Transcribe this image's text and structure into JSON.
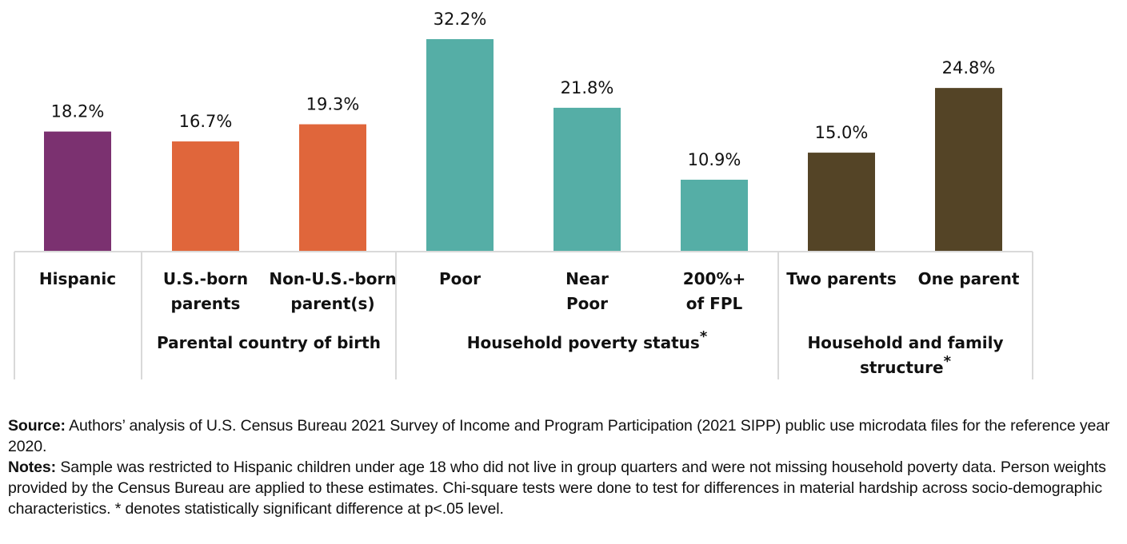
{
  "chart_data": {
    "type": "bar",
    "title": "",
    "xlabel": "",
    "ylabel": "",
    "ylim": [
      0,
      32.2
    ],
    "grid": false,
    "value_suffix": "%",
    "categories": [
      {
        "label": [
          "Hispanic"
        ],
        "value": 18.2,
        "group": 0,
        "color": "#7b3170"
      },
      {
        "label": [
          "U.S.-born",
          "parents"
        ],
        "value": 16.7,
        "group": 1,
        "color": "#e0663b"
      },
      {
        "label": [
          "Non-U.S.-born",
          "parent(s)"
        ],
        "value": 19.3,
        "group": 1,
        "color": "#e0663b"
      },
      {
        "label": [
          "Poor"
        ],
        "value": 32.2,
        "group": 2,
        "color": "#55aea6"
      },
      {
        "label": [
          "Near",
          "Poor"
        ],
        "value": 21.8,
        "group": 2,
        "color": "#55aea6"
      },
      {
        "label": [
          "200%+",
          "of FPL"
        ],
        "value": 10.9,
        "group": 2,
        "color": "#55aea6"
      },
      {
        "label": [
          "Two parents"
        ],
        "value": 15.0,
        "group": 3,
        "color": "#544426"
      },
      {
        "label": [
          "One parent"
        ],
        "value": 24.8,
        "group": 3,
        "color": "#544426"
      }
    ],
    "value_labels": [
      "18.2%",
      "16.7%",
      "19.3%",
      "32.2%",
      "21.8%",
      "10.9%",
      "15.0%",
      "24.8%"
    ],
    "groups": [
      {
        "label": [
          ""
        ],
        "significant": false
      },
      {
        "label": [
          "Parental country of birth"
        ],
        "significant": false
      },
      {
        "label": [
          "Household poverty status"
        ],
        "significant": true
      },
      {
        "label": [
          "Household and family",
          "structure"
        ],
        "significant": true
      }
    ],
    "significance_marker": "*"
  },
  "notes": {
    "source_label": "Source:",
    "source_text": " Authors’ analysis of U.S. Census Bureau 2021 Survey of Income and Program Participation (2021 SIPP) public use microdata files for the reference year 2020.",
    "notes_label": "Notes:",
    "notes_text": " Sample was restricted to Hispanic children under age 18 who did not live in group quarters and were not missing household poverty data. Person weights provided by the Census Bureau are applied to these estimates. Chi-square tests were done to test for differences in material hardship across socio-demographic characteristics. * denotes statistically significant difference at p<.05 level."
  }
}
